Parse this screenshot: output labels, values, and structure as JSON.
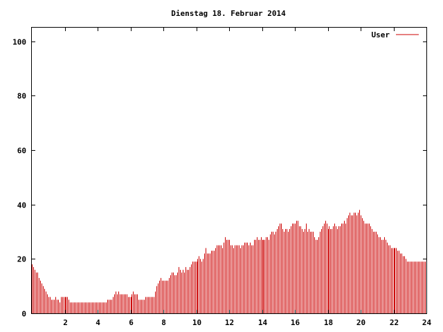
{
  "chart_data": {
    "type": "bar",
    "title": "Dienstag 18. Februar 2014",
    "xlabel": "",
    "ylabel": "",
    "xlim": [
      0,
      24
    ],
    "ylim": [
      0,
      105
    ],
    "x_ticks": [
      2,
      4,
      6,
      8,
      10,
      12,
      14,
      16,
      18,
      20,
      22,
      24
    ],
    "x_tick_labels": [
      "2",
      "4",
      "6",
      "8",
      "10",
      "12",
      "14",
      "16",
      "18",
      "20",
      "22",
      "24"
    ],
    "y_ticks": [
      0,
      20,
      40,
      60,
      80,
      100
    ],
    "y_tick_labels": [
      "0",
      "20",
      "40",
      "60",
      "80",
      "100"
    ],
    "grid": false,
    "legend_position": "top-right",
    "colors": {
      "series": "#cc0000",
      "axis": "#000000",
      "background": "#ffffff"
    },
    "series": [
      {
        "name": "User",
        "interval_minutes": 5,
        "values": [
          18,
          17,
          16,
          15,
          15,
          13,
          12,
          11,
          10,
          9,
          8,
          7,
          6,
          6,
          5,
          5,
          5,
          6,
          5,
          5,
          4,
          6,
          6,
          6,
          6,
          6,
          6,
          5,
          4,
          4,
          4,
          4,
          4,
          4,
          4,
          4,
          4,
          4,
          4,
          4,
          4,
          4,
          4,
          4,
          4,
          4,
          4,
          4,
          4,
          4,
          4,
          4,
          4,
          4,
          4,
          5,
          5,
          5,
          5,
          6,
          7,
          8,
          7,
          8,
          7,
          7,
          7,
          7,
          7,
          7,
          6,
          6,
          6,
          7,
          8,
          7,
          7,
          7,
          5,
          5,
          5,
          5,
          5,
          6,
          6,
          6,
          6,
          6,
          6,
          6,
          8,
          10,
          11,
          12,
          13,
          12,
          12,
          12,
          12,
          12,
          13,
          14,
          15,
          15,
          14,
          14,
          15,
          17,
          16,
          15,
          16,
          15,
          17,
          16,
          16,
          17,
          18,
          19,
          19,
          19,
          19,
          20,
          21,
          20,
          19,
          20,
          22,
          24,
          22,
          22,
          22,
          23,
          23,
          23,
          24,
          25,
          25,
          25,
          25,
          24,
          26,
          28,
          27,
          27,
          27,
          25,
          25,
          24,
          25,
          25,
          25,
          25,
          24,
          25,
          25,
          26,
          26,
          26,
          25,
          26,
          25,
          25,
          27,
          27,
          28,
          27,
          27,
          28,
          27,
          27,
          27,
          28,
          28,
          27,
          29,
          30,
          30,
          29,
          30,
          31,
          32,
          33,
          33,
          31,
          30,
          31,
          31,
          30,
          31,
          32,
          33,
          33,
          33,
          34,
          34,
          32,
          32,
          31,
          30,
          31,
          33,
          30,
          31,
          30,
          30,
          30,
          28,
          27,
          27,
          28,
          30,
          31,
          32,
          33,
          34,
          33,
          31,
          32,
          31,
          31,
          32,
          33,
          32,
          31,
          32,
          32,
          33,
          33,
          34,
          33,
          35,
          36,
          37,
          36,
          36,
          37,
          37,
          36,
          37,
          38,
          36,
          35,
          34,
          33,
          33,
          33,
          33,
          32,
          31,
          30,
          30,
          30,
          29,
          28,
          28,
          27,
          27,
          28,
          27,
          26,
          25,
          25,
          24,
          24,
          24,
          24,
          24,
          23,
          23,
          22,
          22,
          21,
          21,
          20,
          19,
          19,
          19,
          19,
          19,
          19,
          19,
          19,
          19,
          19,
          19,
          19,
          19,
          19
        ]
      }
    ]
  }
}
